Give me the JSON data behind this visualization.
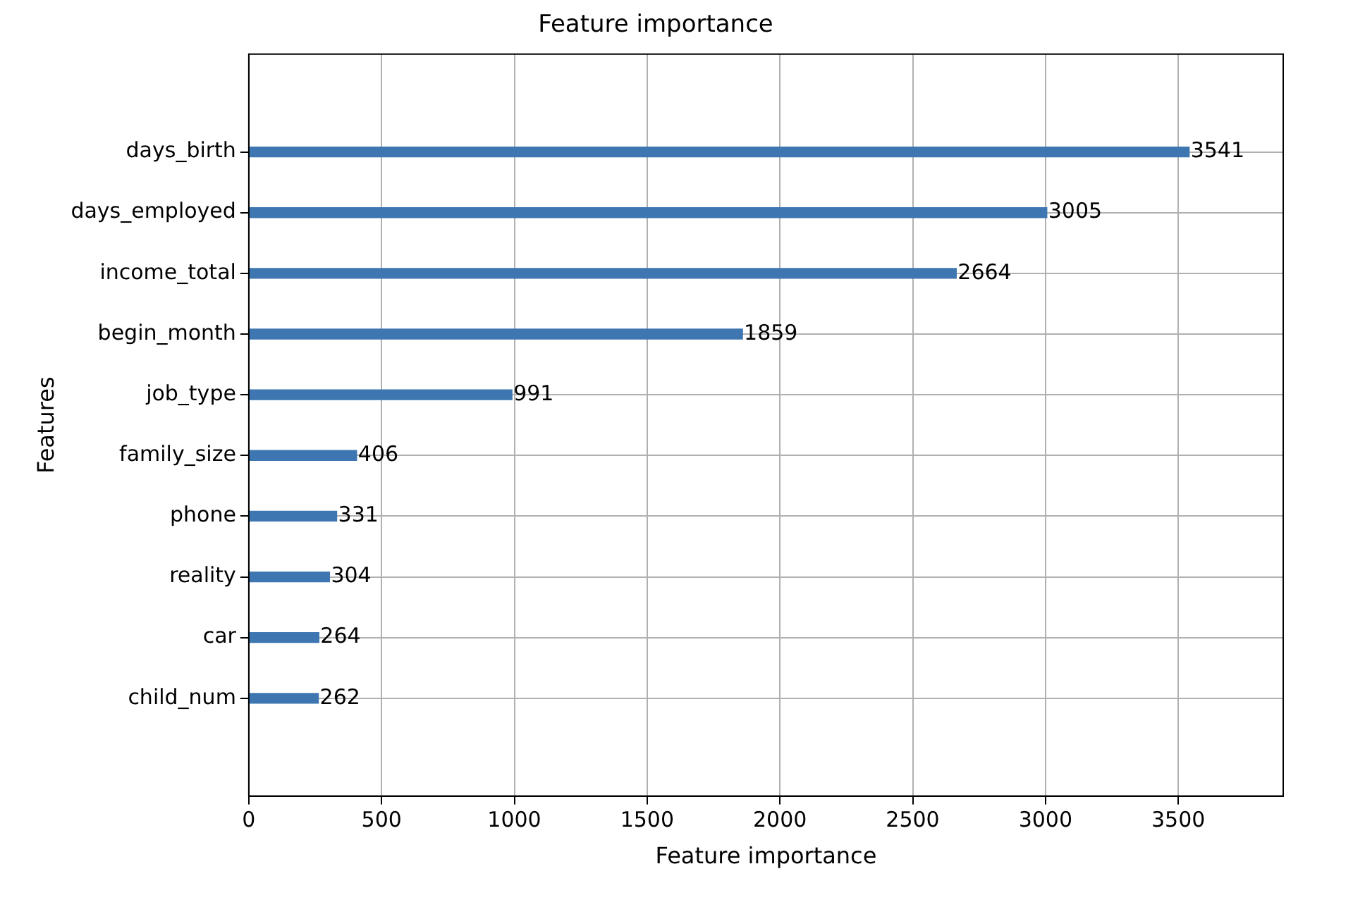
{
  "chart_data": {
    "type": "bar",
    "orientation": "horizontal",
    "title": "Feature importance",
    "xlabel": "Feature importance",
    "ylabel": "Features",
    "categories": [
      "days_birth",
      "days_employed",
      "income_total",
      "begin_month",
      "job_type",
      "family_size",
      "phone",
      "reality",
      "car",
      "child_num"
    ],
    "values": [
      3541,
      3005,
      2664,
      1859,
      991,
      406,
      331,
      304,
      264,
      262
    ],
    "color": "#3d76b0",
    "xlim": [
      0,
      3895
    ],
    "xticks": [
      0,
      500,
      1000,
      1500,
      2000,
      2500,
      3000,
      3500
    ],
    "grid": true,
    "data_labels": true
  }
}
